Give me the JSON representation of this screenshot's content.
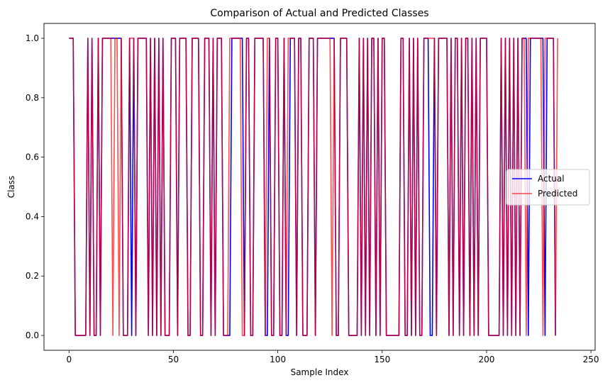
{
  "chart_data": {
    "type": "line",
    "title": "Comparison of Actual and Predicted Classes",
    "xlabel": "Sample Index",
    "ylabel": "Class",
    "xlim": [
      -12,
      252
    ],
    "ylim": [
      -0.05,
      1.05
    ],
    "xticks": [
      0,
      50,
      100,
      150,
      200,
      250
    ],
    "yticks": [
      0.0,
      0.2,
      0.4,
      0.6,
      0.8,
      1.0
    ],
    "ytick_format": "0.0",
    "grid": false,
    "legend_position": "center-right",
    "series": [
      {
        "name": "Actual",
        "color": "#0000ff",
        "alpha": 1.0,
        "values": [
          1,
          1,
          1,
          0,
          0,
          0,
          0,
          0,
          0,
          1,
          0,
          1,
          0,
          0,
          1,
          0,
          1,
          1,
          1,
          1,
          1,
          1,
          1,
          1,
          1,
          1,
          0,
          0,
          0,
          1,
          0,
          1,
          0,
          1,
          1,
          1,
          1,
          1,
          0,
          1,
          0,
          1,
          0,
          1,
          0,
          1,
          0,
          0,
          0,
          1,
          1,
          1,
          0,
          1,
          1,
          1,
          1,
          0,
          0,
          1,
          1,
          1,
          1,
          0,
          0,
          1,
          1,
          1,
          0,
          1,
          0,
          1,
          1,
          1,
          0,
          0,
          0,
          0,
          1,
          1,
          1,
          1,
          1,
          1,
          0,
          1,
          1,
          0,
          0,
          1,
          1,
          1,
          1,
          1,
          0,
          0,
          1,
          0,
          0,
          1,
          1,
          0,
          0,
          1,
          0,
          0,
          1,
          1,
          1,
          0,
          1,
          1,
          0,
          0,
          0,
          1,
          1,
          1,
          0,
          1,
          1,
          1,
          1,
          1,
          1,
          1,
          1,
          1,
          0,
          0,
          1,
          1,
          1,
          1,
          0,
          0,
          0,
          0,
          0,
          1,
          0,
          1,
          0,
          1,
          0,
          1,
          1,
          0,
          1,
          0,
          1,
          1,
          0,
          0,
          0,
          0,
          0,
          0,
          0,
          1,
          1,
          0,
          0,
          1,
          0,
          1,
          0,
          1,
          0,
          0,
          1,
          1,
          1,
          0,
          0,
          1,
          0,
          1,
          1,
          1,
          1,
          1,
          0,
          1,
          0,
          1,
          1,
          0,
          1,
          0,
          1,
          1,
          0,
          1,
          0,
          1,
          0,
          1,
          1,
          1,
          1,
          0,
          0,
          0,
          0,
          0,
          0,
          1,
          0,
          1,
          0,
          1,
          0,
          1,
          0,
          1,
          0,
          1,
          1,
          1,
          0,
          1,
          1,
          1,
          1,
          1,
          1,
          1,
          0,
          1,
          1,
          1,
          1,
          0
        ]
      },
      {
        "name": "Predicted",
        "color": "#ff0000",
        "alpha": 0.7,
        "values": [
          1,
          1,
          1,
          0,
          0,
          0,
          0,
          0,
          0,
          1,
          0,
          1,
          0,
          0,
          1,
          0,
          1,
          1,
          1,
          1,
          1,
          0,
          1,
          1,
          0,
          1,
          0,
          0,
          0,
          1,
          1,
          1,
          0,
          1,
          1,
          1,
          1,
          1,
          0,
          1,
          0,
          1,
          0,
          1,
          0,
          1,
          0,
          0,
          0,
          1,
          1,
          1,
          0,
          1,
          1,
          1,
          1,
          0,
          0,
          1,
          1,
          1,
          1,
          0,
          0,
          1,
          1,
          1,
          0,
          1,
          0,
          1,
          1,
          1,
          0,
          0,
          0,
          1,
          1,
          1,
          1,
          1,
          1,
          0,
          0,
          1,
          1,
          0,
          0,
          1,
          1,
          1,
          1,
          1,
          0,
          1,
          1,
          0,
          0,
          1,
          1,
          0,
          0,
          1,
          0,
          1,
          1,
          1,
          1,
          0,
          1,
          1,
          0,
          0,
          0,
          1,
          1,
          1,
          0,
          1,
          1,
          1,
          1,
          1,
          1,
          1,
          0,
          1,
          0,
          0,
          1,
          1,
          1,
          1,
          0,
          0,
          0,
          0,
          0,
          1,
          0,
          1,
          0,
          1,
          0,
          1,
          1,
          0,
          1,
          0,
          1,
          1,
          0,
          0,
          0,
          0,
          0,
          0,
          0,
          1,
          1,
          0,
          0,
          1,
          0,
          1,
          0,
          1,
          0,
          0,
          1,
          1,
          1,
          1,
          1,
          1,
          0,
          1,
          1,
          1,
          1,
          1,
          0,
          1,
          0,
          1,
          1,
          0,
          1,
          0,
          1,
          1,
          0,
          1,
          0,
          1,
          0,
          1,
          1,
          1,
          1,
          0,
          0,
          0,
          0,
          0,
          0,
          1,
          0,
          1,
          0,
          1,
          0,
          1,
          0,
          1,
          0,
          1,
          1,
          0,
          1,
          1,
          1,
          1,
          1,
          1,
          1,
          0,
          1,
          1,
          1,
          1,
          1,
          0,
          1
        ]
      }
    ]
  }
}
